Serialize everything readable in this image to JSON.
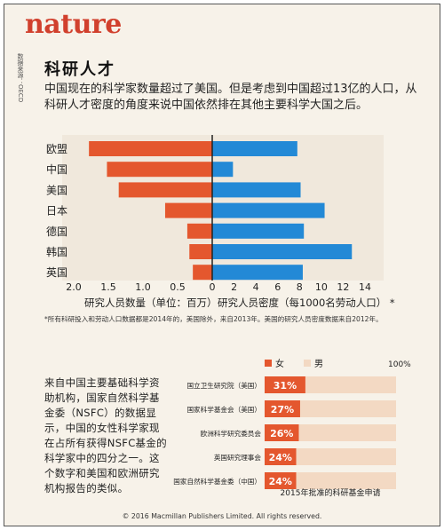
{
  "header": {
    "logo": "nature",
    "source": "数据来源：OECD",
    "title": "科研人才",
    "intro": "中国现在的科学家数量超过了美国。但是考虑到中国超过13亿的人口，从科研人才密度的角度来说中国依然排在其他主要科学大国之后。"
  },
  "colors": {
    "left_bar": "#e4572e",
    "right_bar": "#2389d6",
    "female": "#e4572e",
    "male": "#f3d9c3"
  },
  "chart_data": [
    {
      "type": "bar",
      "orientation": "horizontal-diverging",
      "categories": [
        "欧盟",
        "中国",
        "美国",
        "日本",
        "德国",
        "韩国",
        "英国"
      ],
      "series": [
        {
          "name": "研究人员数量（单位：百万）",
          "values": [
            1.78,
            1.52,
            1.35,
            0.68,
            0.36,
            0.33,
            0.28
          ],
          "ticks": [
            "2.0",
            "1.5",
            "1.0",
            "0.5",
            "0"
          ],
          "range": [
            0,
            2.0
          ]
        },
        {
          "name": "研究人员密度（每1000名劳动人口）",
          "values": [
            7.8,
            1.9,
            8.1,
            10.3,
            8.4,
            12.8,
            8.3
          ],
          "ticks": [
            "2",
            "4",
            "6",
            "8",
            "10",
            "12",
            "14"
          ],
          "range": [
            0,
            14
          ]
        }
      ],
      "density_label_suffix": "*",
      "footnote": "*所有科研投入和劳动人口数据都是2014年的，美国除外，来自2013年。美国的研究人员密度数据来自2012年。"
    },
    {
      "type": "bar",
      "orientation": "horizontal-stacked-100",
      "title": "2015年批准的科研基金申请",
      "legend": [
        "女",
        "男"
      ],
      "scale_label": "100%",
      "categories": [
        "国立卫生研究院（美国）",
        "国家科学基金会（美国）",
        "欧洲科学研究委员会",
        "英国研究理事会",
        "国家自然科学基金委（中国）"
      ],
      "values": [
        31,
        27,
        26,
        24,
        24
      ],
      "value_labels": [
        "31%",
        "27%",
        "26%",
        "24%",
        "24%"
      ]
    }
  ],
  "bottom_text": "来自中国主要基础科学资助机构，国家自然科学基金委（NSFC）的数据显示，中国的女性科学家现在占所有获得NSFC基金的科学家中的四分之一。这个数字和美国和欧洲研究机构报告的类似。",
  "copyright": "© 2016 Macmillan Publishers Limited. All rights reserved."
}
